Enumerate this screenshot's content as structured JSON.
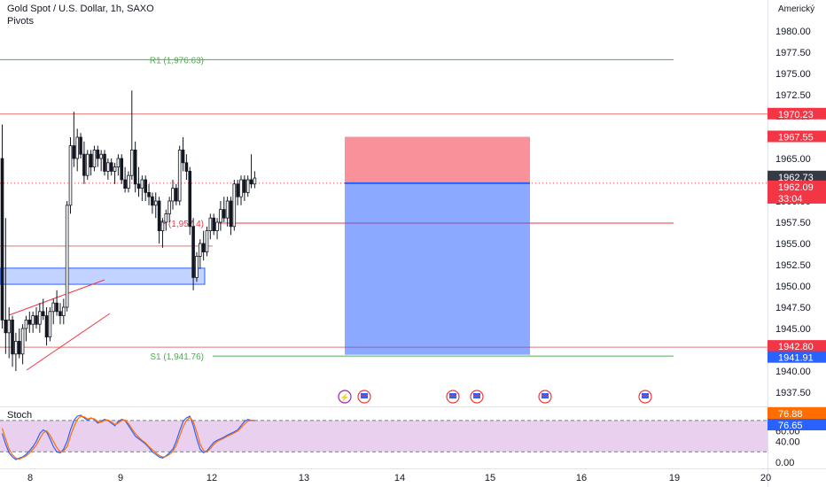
{
  "chart_data": [
    {
      "type": "candlestick",
      "title": "Gold Spot / U.S. Dollar, 1h, SAXO",
      "indicator_label": "Pivots",
      "axis_label_corner": "Americký",
      "ylim": [
        1935,
        1983
      ],
      "yticks": [
        1937.5,
        1940,
        1942.5,
        1945,
        1947.5,
        1950,
        1952.5,
        1955,
        1957.5,
        1960,
        1962.5,
        1965,
        1967.5,
        1970,
        1972.5,
        1975,
        1977.5,
        1980
      ],
      "xticks": [
        "8",
        "9",
        "12",
        "13",
        "14",
        "15",
        "16",
        "19",
        "20"
      ],
      "pivots": [
        {
          "label": "R1 (1,976.63)",
          "value": 1976.63
        },
        {
          "label": "P (1,957.4)",
          "value": 1957.4
        },
        {
          "label": "S1 (1,941.76)",
          "value": 1941.76
        }
      ],
      "price_labels": [
        {
          "value": "1970.23",
          "color": "#f23645"
        },
        {
          "value": "1967.55",
          "color": "#f23645"
        },
        {
          "value": "1962.73",
          "color": "#363a45"
        },
        {
          "value": "1962.09",
          "color": "#f23645",
          "sub": "33:04"
        },
        {
          "value": "1942.80",
          "color": "#f23645"
        },
        {
          "value": "1941.91",
          "color": "#2962ff"
        }
      ],
      "short_position": {
        "entry": 1962.09,
        "stop": 1967.55,
        "target": 1941.91
      },
      "horizontal_levels": [
        1970.23,
        1954.7,
        1942.8
      ],
      "demand_zone": [
        1950.2,
        1952.1
      ],
      "candles": [
        [
          1965.0,
          1969.0,
          1945.0,
          1946.0
        ],
        [
          1946.0,
          1958.0,
          1942.0,
          1944.5
        ],
        [
          1944.5,
          1947.5,
          1941.5,
          1946.0
        ],
        [
          1946.0,
          1946.5,
          1940.5,
          1942.0
        ],
        [
          1942.0,
          1944.5,
          1940.0,
          1943.5
        ],
        [
          1943.5,
          1945.0,
          1941.5,
          1942.0
        ],
        [
          1942.0,
          1945.5,
          1940.8,
          1945.0
        ],
        [
          1945.0,
          1946.5,
          1943.5,
          1946.0
        ],
        [
          1946.0,
          1947.0,
          1944.5,
          1945.5
        ],
        [
          1945.5,
          1947.0,
          1944.5,
          1946.5
        ],
        [
          1946.5,
          1947.5,
          1945.0,
          1945.5
        ],
        [
          1945.5,
          1948.0,
          1944.5,
          1947.0
        ],
        [
          1947.0,
          1948.5,
          1946.0,
          1946.5
        ],
        [
          1946.5,
          1947.5,
          1943.0,
          1944.0
        ],
        [
          1944.0,
          1947.5,
          1943.5,
          1947.0
        ],
        [
          1947.0,
          1948.5,
          1945.5,
          1948.0
        ],
        [
          1948.0,
          1949.5,
          1946.5,
          1947.0
        ],
        [
          1947.0,
          1948.0,
          1945.5,
          1946.5
        ],
        [
          1946.5,
          1948.5,
          1945.5,
          1947.5
        ],
        [
          1947.5,
          1960.0,
          1947.0,
          1959.5
        ],
        [
          1959.5,
          1967.5,
          1958.5,
          1966.5
        ],
        [
          1966.5,
          1970.5,
          1964.0,
          1965.0
        ],
        [
          1965.0,
          1968.5,
          1963.5,
          1967.5
        ],
        [
          1967.5,
          1968.0,
          1965.0,
          1965.5
        ],
        [
          1965.5,
          1967.0,
          1962.0,
          1963.0
        ],
        [
          1963.0,
          1966.0,
          1962.5,
          1965.5
        ],
        [
          1965.5,
          1966.0,
          1963.0,
          1964.0
        ],
        [
          1964.0,
          1966.5,
          1963.5,
          1966.0
        ],
        [
          1966.0,
          1966.5,
          1964.0,
          1965.0
        ],
        [
          1965.0,
          1966.0,
          1963.5,
          1965.5
        ],
        [
          1965.5,
          1966.0,
          1963.0,
          1963.5
        ],
        [
          1963.5,
          1965.0,
          1962.5,
          1964.5
        ],
        [
          1964.5,
          1965.0,
          1963.0,
          1963.5
        ],
        [
          1963.5,
          1964.5,
          1962.0,
          1964.0
        ],
        [
          1964.0,
          1965.5,
          1963.0,
          1965.0
        ],
        [
          1965.0,
          1965.5,
          1962.0,
          1962.5
        ],
        [
          1962.5,
          1964.0,
          1961.0,
          1961.5
        ],
        [
          1961.5,
          1963.5,
          1961.0,
          1963.0
        ],
        [
          1963.0,
          1973.0,
          1962.5,
          1966.0
        ],
        [
          1966.0,
          1967.0,
          1961.0,
          1962.0
        ],
        [
          1962.0,
          1964.0,
          1960.5,
          1961.5
        ],
        [
          1961.5,
          1963.0,
          1960.0,
          1962.5
        ],
        [
          1962.5,
          1963.0,
          1960.0,
          1961.0
        ],
        [
          1961.0,
          1962.0,
          1959.5,
          1960.5
        ],
        [
          1960.5,
          1961.0,
          1958.5,
          1959.5
        ],
        [
          1959.5,
          1961.0,
          1958.0,
          1960.0
        ],
        [
          1960.0,
          1960.5,
          1955.0,
          1956.5
        ],
        [
          1956.5,
          1958.0,
          1954.5,
          1957.5
        ],
        [
          1957.5,
          1959.0,
          1956.5,
          1958.5
        ],
        [
          1958.5,
          1960.5,
          1957.5,
          1960.0
        ],
        [
          1960.0,
          1962.5,
          1959.0,
          1961.5
        ],
        [
          1961.5,
          1962.0,
          1959.5,
          1960.0
        ],
        [
          1960.0,
          1966.5,
          1959.5,
          1966.0
        ],
        [
          1966.0,
          1967.5,
          1963.5,
          1964.5
        ],
        [
          1964.5,
          1965.5,
          1962.5,
          1963.5
        ],
        [
          1963.5,
          1964.0,
          1956.0,
          1957.0
        ],
        [
          1957.0,
          1958.0,
          1949.5,
          1951.0
        ],
        [
          1951.0,
          1954.0,
          1950.5,
          1953.5
        ],
        [
          1953.5,
          1955.5,
          1952.0,
          1955.0
        ],
        [
          1955.0,
          1956.5,
          1953.0,
          1954.0
        ],
        [
          1954.0,
          1957.0,
          1953.5,
          1956.5
        ],
        [
          1956.5,
          1958.5,
          1955.5,
          1958.0
        ],
        [
          1958.0,
          1958.5,
          1956.0,
          1956.5
        ],
        [
          1956.5,
          1958.0,
          1955.5,
          1957.5
        ],
        [
          1957.5,
          1960.0,
          1956.5,
          1959.0
        ],
        [
          1959.0,
          1960.5,
          1957.5,
          1958.0
        ],
        [
          1958.0,
          1960.5,
          1957.0,
          1960.0
        ],
        [
          1960.0,
          1960.5,
          1956.0,
          1957.0
        ],
        [
          1957.0,
          1962.5,
          1956.5,
          1962.0
        ],
        [
          1962.0,
          1962.5,
          1959.5,
          1960.5
        ],
        [
          1960.5,
          1963.0,
          1959.5,
          1962.5
        ],
        [
          1962.5,
          1963.0,
          1960.0,
          1961.0
        ],
        [
          1961.0,
          1963.0,
          1960.5,
          1962.5
        ],
        [
          1962.5,
          1965.5,
          1961.5,
          1962.0
        ],
        [
          1962.0,
          1963.5,
          1961.5,
          1962.7
        ]
      ],
      "events": [
        {
          "x_index": 75,
          "type": "flash",
          "label": "⚡"
        },
        {
          "x_index": 77,
          "type": "flag"
        },
        {
          "x_index": 100,
          "type": "flag"
        },
        {
          "x_index": 104,
          "type": "flag"
        },
        {
          "x_index": 118,
          "type": "flag"
        },
        {
          "x_index": 141,
          "type": "flag"
        }
      ]
    },
    {
      "type": "line",
      "title": "Stoch",
      "ylim": [
        -5,
        110
      ],
      "yticks": [
        "0.00",
        "40.00",
        "60.00"
      ],
      "band": [
        20,
        80
      ],
      "series": [
        {
          "name": "",
          "color": "#2962ff",
          "values": [
            55,
            35,
            18,
            10,
            5,
            8,
            10,
            15,
            22,
            30,
            40,
            55,
            62,
            58,
            45,
            30,
            20,
            18,
            25,
            40,
            62,
            80,
            88,
            90,
            85,
            80,
            85,
            82,
            75,
            78,
            82,
            80,
            75,
            70,
            78,
            82,
            80,
            70,
            60,
            50,
            45,
            40,
            35,
            28,
            20,
            15,
            10,
            8,
            12,
            18,
            25,
            40,
            60,
            78,
            85,
            88,
            70,
            45,
            25,
            18,
            22,
            30,
            38,
            42,
            45,
            48,
            52,
            55,
            58,
            62,
            70,
            78,
            82,
            80,
            80
          ]
        },
        {
          "name": "",
          "color": "#ff6d00",
          "values": [
            65,
            45,
            25,
            14,
            8,
            6,
            9,
            12,
            18,
            25,
            33,
            45,
            56,
            60,
            52,
            40,
            28,
            20,
            22,
            30,
            50,
            68,
            82,
            88,
            87,
            83,
            84,
            83,
            78,
            77,
            80,
            81,
            77,
            72,
            75,
            80,
            81,
            74,
            64,
            55,
            48,
            42,
            37,
            30,
            24,
            18,
            13,
            10,
            11,
            15,
            21,
            32,
            50,
            68,
            80,
            86,
            78,
            58,
            35,
            22,
            20,
            26,
            34,
            40,
            43,
            46,
            50,
            53,
            56,
            60,
            66,
            73,
            79,
            80,
            79
          ]
        }
      ]
    }
  ]
}
